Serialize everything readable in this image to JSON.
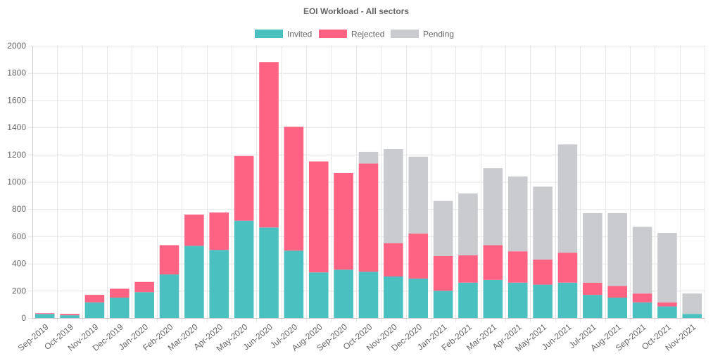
{
  "chart_data": {
    "type": "bar",
    "stacked": true,
    "title": "EOI Workload - All sectors",
    "legend_position": "top",
    "grid": true,
    "ylim": [
      0,
      2000
    ],
    "y_ticks": [
      0,
      200,
      400,
      600,
      800,
      1000,
      1200,
      1400,
      1600,
      1800,
      2000
    ],
    "categories": [
      "Sep-2019",
      "Oct-2019",
      "Nov-2019",
      "Dec-2019",
      "Jan-2020",
      "Feb-2020",
      "Mar-2020",
      "Apr-2020",
      "May-2020",
      "Jun-2020",
      "Jul-2020",
      "Aug-2020",
      "Sep-2020",
      "Oct-2020",
      "Nov-2020",
      "Dec-2020",
      "Jan-2021",
      "Feb-2021",
      "Mar-2021",
      "Apr-2021",
      "May-2021",
      "Jun-2021",
      "Jul-2021",
      "Aug-2021",
      "Sep-2021",
      "Oct-2021",
      "Nov-2021"
    ],
    "series": [
      {
        "name": "Invited",
        "color": "#4bc0c0",
        "values": [
          30,
          20,
          115,
          150,
          190,
          320,
          530,
          500,
          715,
          665,
          495,
          335,
          355,
          340,
          305,
          290,
          200,
          260,
          280,
          260,
          245,
          260,
          170,
          150,
          115,
          85,
          30
        ]
      },
      {
        "name": "Rejected",
        "color": "#ff6384",
        "values": [
          5,
          10,
          55,
          65,
          75,
          215,
          230,
          275,
          475,
          1215,
          910,
          815,
          710,
          795,
          245,
          330,
          255,
          200,
          255,
          230,
          185,
          220,
          90,
          85,
          65,
          30,
          0
        ]
      },
      {
        "name": "Pending",
        "color": "#c9cbcf",
        "values": [
          0,
          0,
          0,
          0,
          0,
          0,
          0,
          0,
          0,
          0,
          0,
          0,
          0,
          85,
          690,
          565,
          405,
          455,
          565,
          550,
          535,
          795,
          510,
          535,
          490,
          510,
          150
        ]
      }
    ]
  }
}
